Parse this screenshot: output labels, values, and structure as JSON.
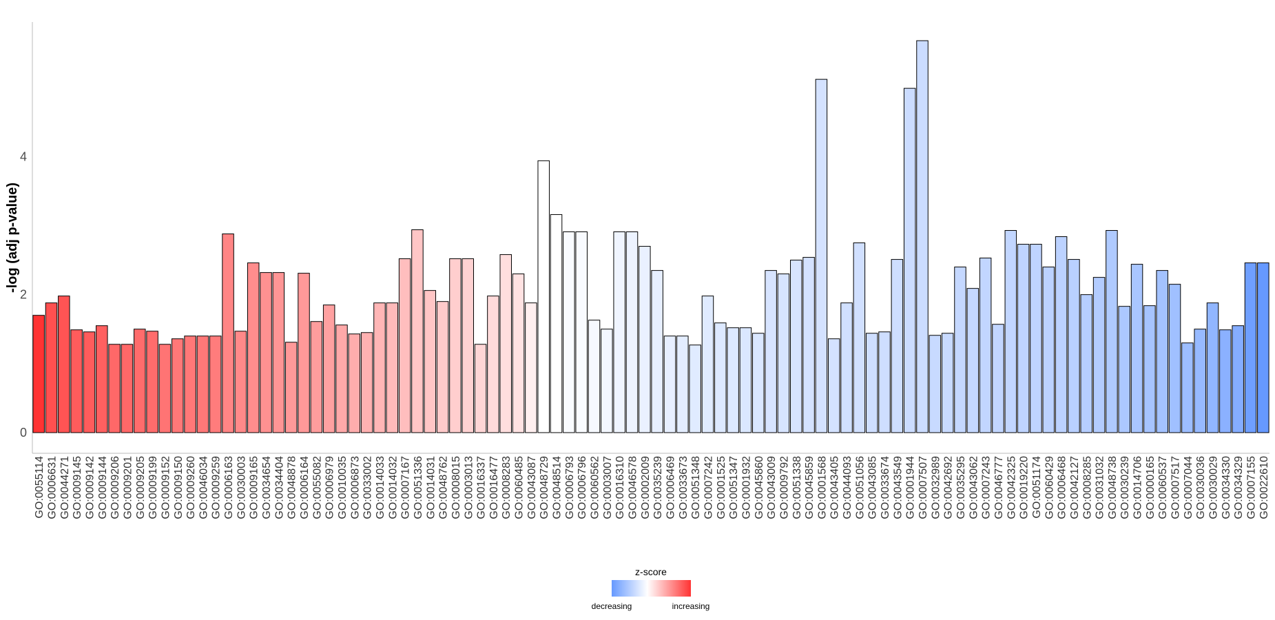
{
  "chart_data": {
    "type": "bar",
    "ylabel": "-log (adj p-value)",
    "xlabel": "",
    "ylim": [
      0,
      5.95
    ],
    "yticks": [
      0,
      2,
      4
    ],
    "grid": false,
    "legend": {
      "title": "z-score",
      "low_label": "decreasing",
      "high_label": "increasing",
      "placement": "bottom-center",
      "low_color": "#6699ff",
      "mid_color": "#ffffff",
      "high_color": "#ff3333"
    },
    "categories": [
      "GO:0055114",
      "GO:0006631",
      "GO:0044271",
      "GO:0009145",
      "GO:0009142",
      "GO:0009144",
      "GO:0009206",
      "GO:0009201",
      "GO:0009205",
      "GO:0009199",
      "GO:0009152",
      "GO:0009150",
      "GO:0009260",
      "GO:0046034",
      "GO:0009259",
      "GO:0006163",
      "GO:0030003",
      "GO:0009165",
      "GO:0034654",
      "GO:0034404",
      "GO:0048878",
      "GO:0006164",
      "GO:0055082",
      "GO:0006979",
      "GO:0010035",
      "GO:0006873",
      "GO:0033002",
      "GO:0014033",
      "GO:0014032",
      "GO:0007167",
      "GO:0051336",
      "GO:0014031",
      "GO:0048762",
      "GO:0008015",
      "GO:0003013",
      "GO:0016337",
      "GO:0016477",
      "GO:0008283",
      "GO:0060485",
      "GO:0043087",
      "GO:0048729",
      "GO:0048514",
      "GO:0006793",
      "GO:0006796",
      "GO:0060562",
      "GO:0003007",
      "GO:0016310",
      "GO:0046578",
      "GO:0002009",
      "GO:0035239",
      "GO:0006469",
      "GO:0033673",
      "GO:0051348",
      "GO:0007242",
      "GO:0001525",
      "GO:0051347",
      "GO:0001932",
      "GO:0045860",
      "GO:0043009",
      "GO:0009792",
      "GO:0051338",
      "GO:0045859",
      "GO:0001568",
      "GO:0043405",
      "GO:0044093",
      "GO:0051056",
      "GO:0043085",
      "GO:0033674",
      "GO:0043549",
      "GO:0001944",
      "GO:0007507",
      "GO:0032989",
      "GO:0042692",
      "GO:0035295",
      "GO:0043062",
      "GO:0007243",
      "GO:0046777",
      "GO:0042325",
      "GO:0019220",
      "GO:0051174",
      "GO:0060429",
      "GO:0006468",
      "GO:0042127",
      "GO:0008285",
      "GO:0031032",
      "GO:0048738",
      "GO:0030239",
      "GO:0014706",
      "GO:0000165",
      "GO:0060537",
      "GO:0007517",
      "GO:0007044",
      "GO:0030036",
      "GO:0030029",
      "GO:0034330",
      "GO:0034329",
      "GO:0007155",
      "GO:0022610"
    ],
    "values": [
      1.7,
      1.88,
      1.98,
      1.49,
      1.46,
      1.55,
      1.28,
      1.28,
      1.5,
      1.47,
      1.28,
      1.36,
      1.4,
      1.4,
      1.4,
      2.88,
      1.47,
      2.46,
      2.32,
      2.32,
      1.31,
      2.31,
      1.61,
      1.85,
      1.56,
      1.43,
      1.45,
      1.88,
      1.88,
      2.52,
      2.94,
      2.06,
      1.9,
      2.52,
      2.52,
      1.28,
      1.98,
      2.58,
      2.3,
      1.88,
      3.94,
      3.16,
      2.91,
      2.91,
      1.63,
      1.5,
      2.91,
      2.91,
      2.7,
      2.35,
      1.4,
      1.4,
      1.27,
      1.98,
      1.59,
      1.52,
      1.52,
      1.44,
      2.35,
      2.3,
      2.5,
      2.54,
      5.12,
      1.36,
      1.88,
      2.75,
      1.44,
      1.46,
      2.51,
      4.99,
      5.68,
      1.41,
      1.44,
      2.4,
      2.09,
      2.53,
      1.57,
      2.93,
      2.73,
      2.73,
      2.4,
      2.84,
      2.51,
      2.0,
      2.25,
      2.93,
      1.83,
      2.44,
      1.84,
      2.35,
      2.15,
      1.3,
      1.5,
      1.88,
      1.49,
      1.55,
      2.46,
      2.46
    ],
    "zscore_position": [
      0.0,
      0.07,
      0.08,
      0.1,
      0.1,
      0.11,
      0.13,
      0.13,
      0.14,
      0.14,
      0.16,
      0.17,
      0.17,
      0.17,
      0.18,
      0.2,
      0.21,
      0.22,
      0.23,
      0.24,
      0.25,
      0.25,
      0.26,
      0.27,
      0.29,
      0.3,
      0.31,
      0.32,
      0.33,
      0.34,
      0.36,
      0.36,
      0.37,
      0.38,
      0.39,
      0.4,
      0.41,
      0.42,
      0.43,
      0.46,
      0.5,
      0.5,
      0.52,
      0.52,
      0.53,
      0.54,
      0.55,
      0.56,
      0.57,
      0.58,
      0.58,
      0.59,
      0.6,
      0.6,
      0.61,
      0.61,
      0.62,
      0.62,
      0.63,
      0.63,
      0.63,
      0.64,
      0.64,
      0.64,
      0.65,
      0.65,
      0.66,
      0.66,
      0.66,
      0.67,
      0.67,
      0.68,
      0.68,
      0.69,
      0.69,
      0.7,
      0.7,
      0.7,
      0.71,
      0.71,
      0.72,
      0.72,
      0.73,
      0.74,
      0.75,
      0.76,
      0.77,
      0.78,
      0.79,
      0.8,
      0.81,
      0.82,
      0.84,
      0.86,
      0.88,
      0.9,
      0.97,
      1.0
    ]
  }
}
